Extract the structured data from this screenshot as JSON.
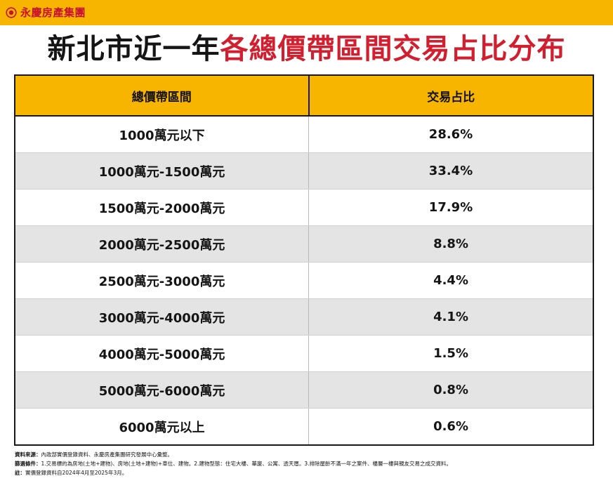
{
  "brand": {
    "name": "永慶房產集團",
    "logo_icon": "circle-logo-icon"
  },
  "title": {
    "part1": "新北市近一年",
    "part2": "各總價帶區間交易占比分布"
  },
  "table": {
    "headers": [
      "總價帶區間",
      "交易占比"
    ],
    "rows": [
      {
        "range": "1000萬元以下",
        "share": "28.6%"
      },
      {
        "range": "1000萬元-1500萬元",
        "share": "33.4%"
      },
      {
        "range": "1500萬元-2000萬元",
        "share": "17.9%"
      },
      {
        "range": "2000萬元-2500萬元",
        "share": "8.8%"
      },
      {
        "range": "2500萬元-3000萬元",
        "share": "4.4%"
      },
      {
        "range": "3000萬元-4000萬元",
        "share": "4.1%"
      },
      {
        "range": "4000萬元-5000萬元",
        "share": "1.5%"
      },
      {
        "range": "5000萬元-6000萬元",
        "share": "0.8%"
      },
      {
        "range": "6000萬元以上",
        "share": "0.6%"
      }
    ]
  },
  "notes": [
    {
      "label": "資料來源：",
      "text": "內政部實價登錄資料、永慶房產集團研究發展中心彙整。"
    },
    {
      "label": "篩選條件：",
      "text": "1.交易標的為房地(土地+建物)、房地(土地+建物)+車位、建物。2.建物型態：住宅大樓、華廈、公寓、透天厝。3.排除屋齡不滿一年之案件、樓層一樓與親友交易之成交資料。"
    },
    {
      "label": "註：",
      "text": "實價登錄資料自2024年4月至2025年3月。"
    }
  ],
  "colors": {
    "accent_yellow": "#f7b500",
    "title_red": "#d21f2f",
    "brand_red": "#c8102e",
    "row_gray": "#e4e4e4"
  }
}
